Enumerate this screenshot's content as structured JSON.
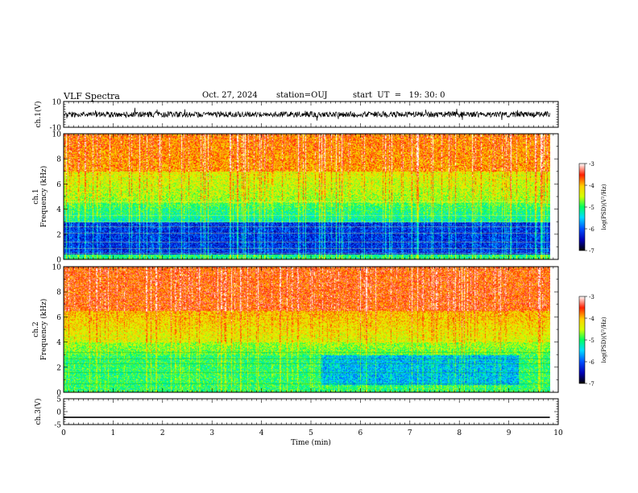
{
  "header": {
    "title": "VLF Spectra",
    "date": "Oct. 27, 2024",
    "station": "station=OUJ",
    "start": "start  UT  =   19: 30: 0"
  },
  "chart_data": [
    {
      "type": "line",
      "ylabel": "ch.1(V)",
      "ylim": [
        -10,
        10
      ],
      "yticks": [
        "10",
        "-10"
      ],
      "description_values": {
        "baseline_V": 0,
        "x_range_min": [
          0,
          9.83
        ]
      }
    },
    {
      "type": "heatmap",
      "ylabel": "ch.1\nFrequency (kHz)",
      "ylabel_line1": "ch.1",
      "ylabel_line2": "Frequency (kHz)",
      "ylim": [
        0,
        10
      ],
      "yticks": [
        "0",
        "2",
        "4",
        "6",
        "8",
        "10"
      ],
      "x_range_min": [
        0,
        9.83
      ],
      "colorbar": {
        "label": "log(PSD)(V²/Hz)",
        "range": [
          -7,
          -3
        ],
        "ticks": [
          "-3",
          "-4",
          "-5",
          "-6",
          "-7"
        ]
      }
    },
    {
      "type": "heatmap",
      "ylabel": "ch.2\nFrequency (kHz)",
      "ylabel_line1": "ch.2",
      "ylabel_line2": "Frequency (kHz)",
      "ylim": [
        0,
        10
      ],
      "yticks": [
        "0",
        "2",
        "4",
        "6",
        "8",
        "10"
      ],
      "x_range_min": [
        0,
        9.83
      ],
      "colorbar": {
        "label": "log(PSD)(V²/Hz)",
        "range": [
          -7,
          -3
        ],
        "ticks": [
          "-3",
          "-4",
          "-5",
          "-6",
          "-7"
        ]
      }
    },
    {
      "type": "line",
      "ylabel": "ch.3(V)",
      "ylim": [
        -5,
        5
      ],
      "yticks": [
        "5",
        "0",
        "-5"
      ],
      "series": [
        {
          "x": [
            0,
            9.83
          ],
          "y": [
            -2.2,
            -2.2
          ]
        }
      ],
      "xlabel": "Time  (min)",
      "xlim": [
        0,
        10
      ],
      "xticks": [
        "0",
        "1",
        "2",
        "3",
        "4",
        "5",
        "6",
        "7",
        "8",
        "9",
        "10"
      ]
    }
  ],
  "colors": {
    "ink": "#000000",
    "cmap": [
      "#000000",
      "#0000b4",
      "#0050ff",
      "#00dcff",
      "#00ff60",
      "#d2ff00",
      "#ffd000",
      "#ff2000",
      "#ffffff"
    ]
  }
}
